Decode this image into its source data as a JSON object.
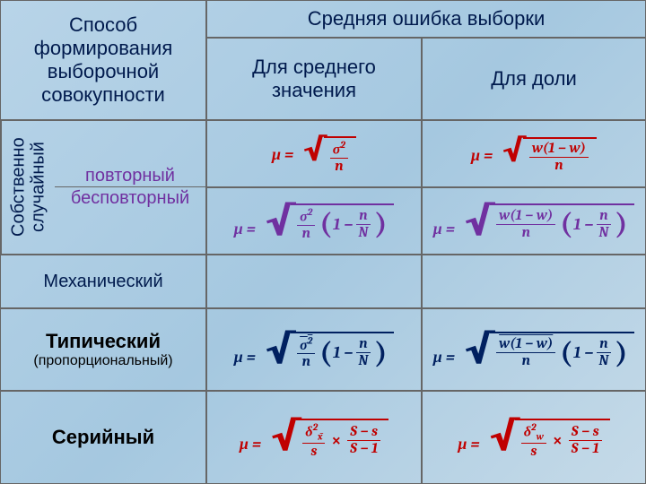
{
  "colors": {
    "background_gradient": [
      "#b8d4e8",
      "#a5c8e0",
      "#c5dae8"
    ],
    "header_text": "#001a4d",
    "border": "#666666",
    "formula_red": "#c00000",
    "formula_purple": "#7030a0",
    "formula_navy": "#002060",
    "black": "#000000"
  },
  "typography": {
    "body_font": "Segoe UI, Arial, sans-serif",
    "formula_font": "Cambria Math, Cambria, serif",
    "header_size_pt": 16,
    "row_label_size_pt": 15,
    "formula_size_pt": 14
  },
  "header": {
    "col1": "Способ формирования выборочной совокупности",
    "col2_main": "Средняя ошибка выборки",
    "col2_sub_a": "Для среднего значения",
    "col2_sub_b": "Для доли"
  },
  "rows": {
    "group_label": "Собственно случайный",
    "r1_label": "повторный",
    "r2_label": "бесповторный",
    "r3_label": "Механический",
    "r4_label": "Типический",
    "r4_sub": "(пропорциональный)",
    "r5_label": "Серийный"
  },
  "formulas": {
    "mu": "μ",
    "eq": "=",
    "sigma2": "σ²",
    "n": "n",
    "N": "N",
    "w": "w",
    "one_minus_w": "(1 − w)",
    "one": "1",
    "minus": "−",
    "times": "×",
    "delta2_xbar": "δ²_x̄",
    "delta2_w": "δ²_w",
    "s_small": "s",
    "S_big": "S",
    "S_minus_s": "S − s",
    "S_minus_1": "S − 1",
    "row1_mean_color": "#c00000",
    "row1_share_color": "#c00000",
    "row2_mean_color": "#7030a0",
    "row2_share_color": "#7030a0",
    "row4_mean_color": "#002060",
    "row4_share_color": "#002060",
    "row5_mean_color": "#c00000",
    "row5_share_color": "#c00000"
  }
}
